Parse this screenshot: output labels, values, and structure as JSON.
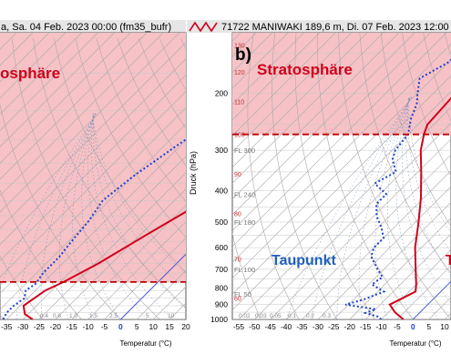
{
  "colors": {
    "strat_fill": "#f6c2c6",
    "temperature": "#d0021b",
    "dewpoint": "#1f3fcf",
    "tropopause": "#c00000",
    "dry_adiabat": "#b0a6a6",
    "moist_adiabat": "#6f8fb8",
    "isotherm": "#a9a9a9",
    "header_bg": "#e6e6e6"
  },
  "left_panel": {
    "header": "a, Sa. 04 Feb. 2023 00:00 (fm35_bufr)",
    "strat_label": "osphäre",
    "x_ticks": [
      "-35",
      "-30",
      "-25",
      "-20",
      "-15",
      "-10",
      "-5",
      "0",
      "5",
      "10",
      "15",
      "20"
    ],
    "x_label": "Temperatur (°C)",
    "mix_labels": [
      "0.4",
      "0.6",
      "1.0",
      "1.5",
      "2.5",
      "5",
      "10"
    ]
  },
  "right_panel": {
    "header": "71722 MANIWAKI 189,6 m, Di. 07 Feb. 2023 12:00 (fm",
    "panel_letter": "b)",
    "strat_label": "Stratosphäre",
    "dew_label": "Taupunkt",
    "temp_label": "T",
    "y_label": "Druck (hPa)",
    "y_ticks": [
      "200",
      "300",
      "400",
      "500",
      "600",
      "700",
      "800",
      "900",
      "1000"
    ],
    "fl_labels": [
      "FL 300",
      "FL 240",
      "FL 180",
      "FL 100",
      "FL 50"
    ],
    "adiabat_labels": [
      "130",
      "120",
      "110",
      "100",
      "90",
      "80",
      "70",
      "60"
    ],
    "x_ticks": [
      "-55",
      "-50",
      "-45",
      "-40",
      "-35",
      "-30",
      "-25",
      "-20",
      "-15",
      "-10",
      "-5",
      "0",
      "5",
      "10"
    ],
    "x_label": "Temperatur (°C)",
    "mix_labels": [
      "0.02",
      "0.03",
      "0.05",
      "0.1",
      "0.2",
      "0.3"
    ]
  },
  "chart_data": [
    {
      "type": "line",
      "panel": "left",
      "title": "a, Sa. 04 Feb. 2023 00:00 (fm35_bufr)",
      "xlabel": "Temperatur (°C)",
      "ylabel": "",
      "x_scale": "skew-T (isotherms skewed 45°)",
      "y_scale": "log pressure",
      "xlim_at_surface": [
        -37,
        20
      ],
      "tropopause_hPa": 750,
      "series": [
        {
          "name": "",
          "style": "solid",
          "color": "#d0021b",
          "points": [
            [
              -27,
              1000
            ],
            [
              -31,
              960
            ],
            [
              -34,
              900
            ],
            [
              -32,
              800
            ],
            [
              -29,
              750
            ],
            [
              -24,
              650
            ],
            [
              -18,
              520
            ],
            [
              -12,
              420
            ],
            [
              -6,
              330
            ],
            [
              2,
              250
            ],
            [
              10,
              175
            ],
            [
              16,
              125
            ]
          ]
        },
        {
          "name": "",
          "style": "dotted",
          "color": "#1f3fcf",
          "points": [
            [
              -36,
              1000
            ],
            [
              -37,
              950
            ],
            [
              -37,
              900
            ],
            [
              -36,
              850
            ],
            [
              -38,
              800
            ],
            [
              -37,
              760
            ],
            [
              -38,
              700
            ],
            [
              -38,
              620
            ],
            [
              -39,
              550
            ],
            [
              -40,
              470
            ],
            [
              -42,
              400
            ],
            [
              -40,
              330
            ],
            [
              -36,
              260
            ],
            [
              -31,
              200
            ],
            [
              -26,
              150
            ],
            [
              -19,
              115
            ]
          ]
        }
      ]
    },
    {
      "type": "line",
      "panel": "right",
      "title": "71722 MANIWAKI 189,6 m, Di. 07 Feb. 2023 12:00",
      "xlabel": "Temperatur (°C)",
      "ylabel": "Druck (hPa)",
      "x_scale": "skew-T (isotherms skewed 45°)",
      "y_scale": "log pressure",
      "xlim_at_surface": [
        -57,
        12
      ],
      "ylim": [
        1000,
        130
      ],
      "tropopause_hPa": 268,
      "series": [
        {
          "name": "T",
          "style": "solid",
          "color": "#d0021b",
          "points": [
            [
              -3,
              1000
            ],
            [
              -8,
              950
            ],
            [
              -12,
              900
            ],
            [
              -10,
              860
            ],
            [
              -8,
              820
            ],
            [
              -10,
              780
            ],
            [
              -15,
              700
            ],
            [
              -22,
              600
            ],
            [
              -29,
              500
            ],
            [
              -36,
              420
            ],
            [
              -44,
              350
            ],
            [
              -51,
              300
            ],
            [
              -55,
              268
            ],
            [
              -57,
              250
            ],
            [
              -58,
              200
            ],
            [
              -59,
              160
            ],
            [
              -60,
              130
            ]
          ]
        },
        {
          "name": "Taupunkt",
          "style": "dotted",
          "color": "#1f3fcf",
          "points": [
            [
              -10,
              1000
            ],
            [
              -12,
              980
            ],
            [
              -17,
              955
            ],
            [
              -15,
              930
            ],
            [
              -26,
              900
            ],
            [
              -22,
              870
            ],
            [
              -18,
              820
            ],
            [
              -24,
              780
            ],
            [
              -23,
              740
            ],
            [
              -27,
              700
            ],
            [
              -33,
              640
            ],
            [
              -35,
              600
            ],
            [
              -35,
              560
            ],
            [
              -39,
              520
            ],
            [
              -44,
              480
            ],
            [
              -48,
              440
            ],
            [
              -48,
              410
            ],
            [
              -55,
              380
            ],
            [
              -52,
              350
            ],
            [
              -57,
              320
            ],
            [
              -59,
              300
            ],
            [
              -60,
              268
            ],
            [
              -64,
              240
            ],
            [
              -67,
              215
            ],
            [
              -70,
              200
            ],
            [
              -74,
              180
            ],
            [
              -70,
              160
            ],
            [
              -70,
              130
            ]
          ]
        }
      ]
    }
  ]
}
